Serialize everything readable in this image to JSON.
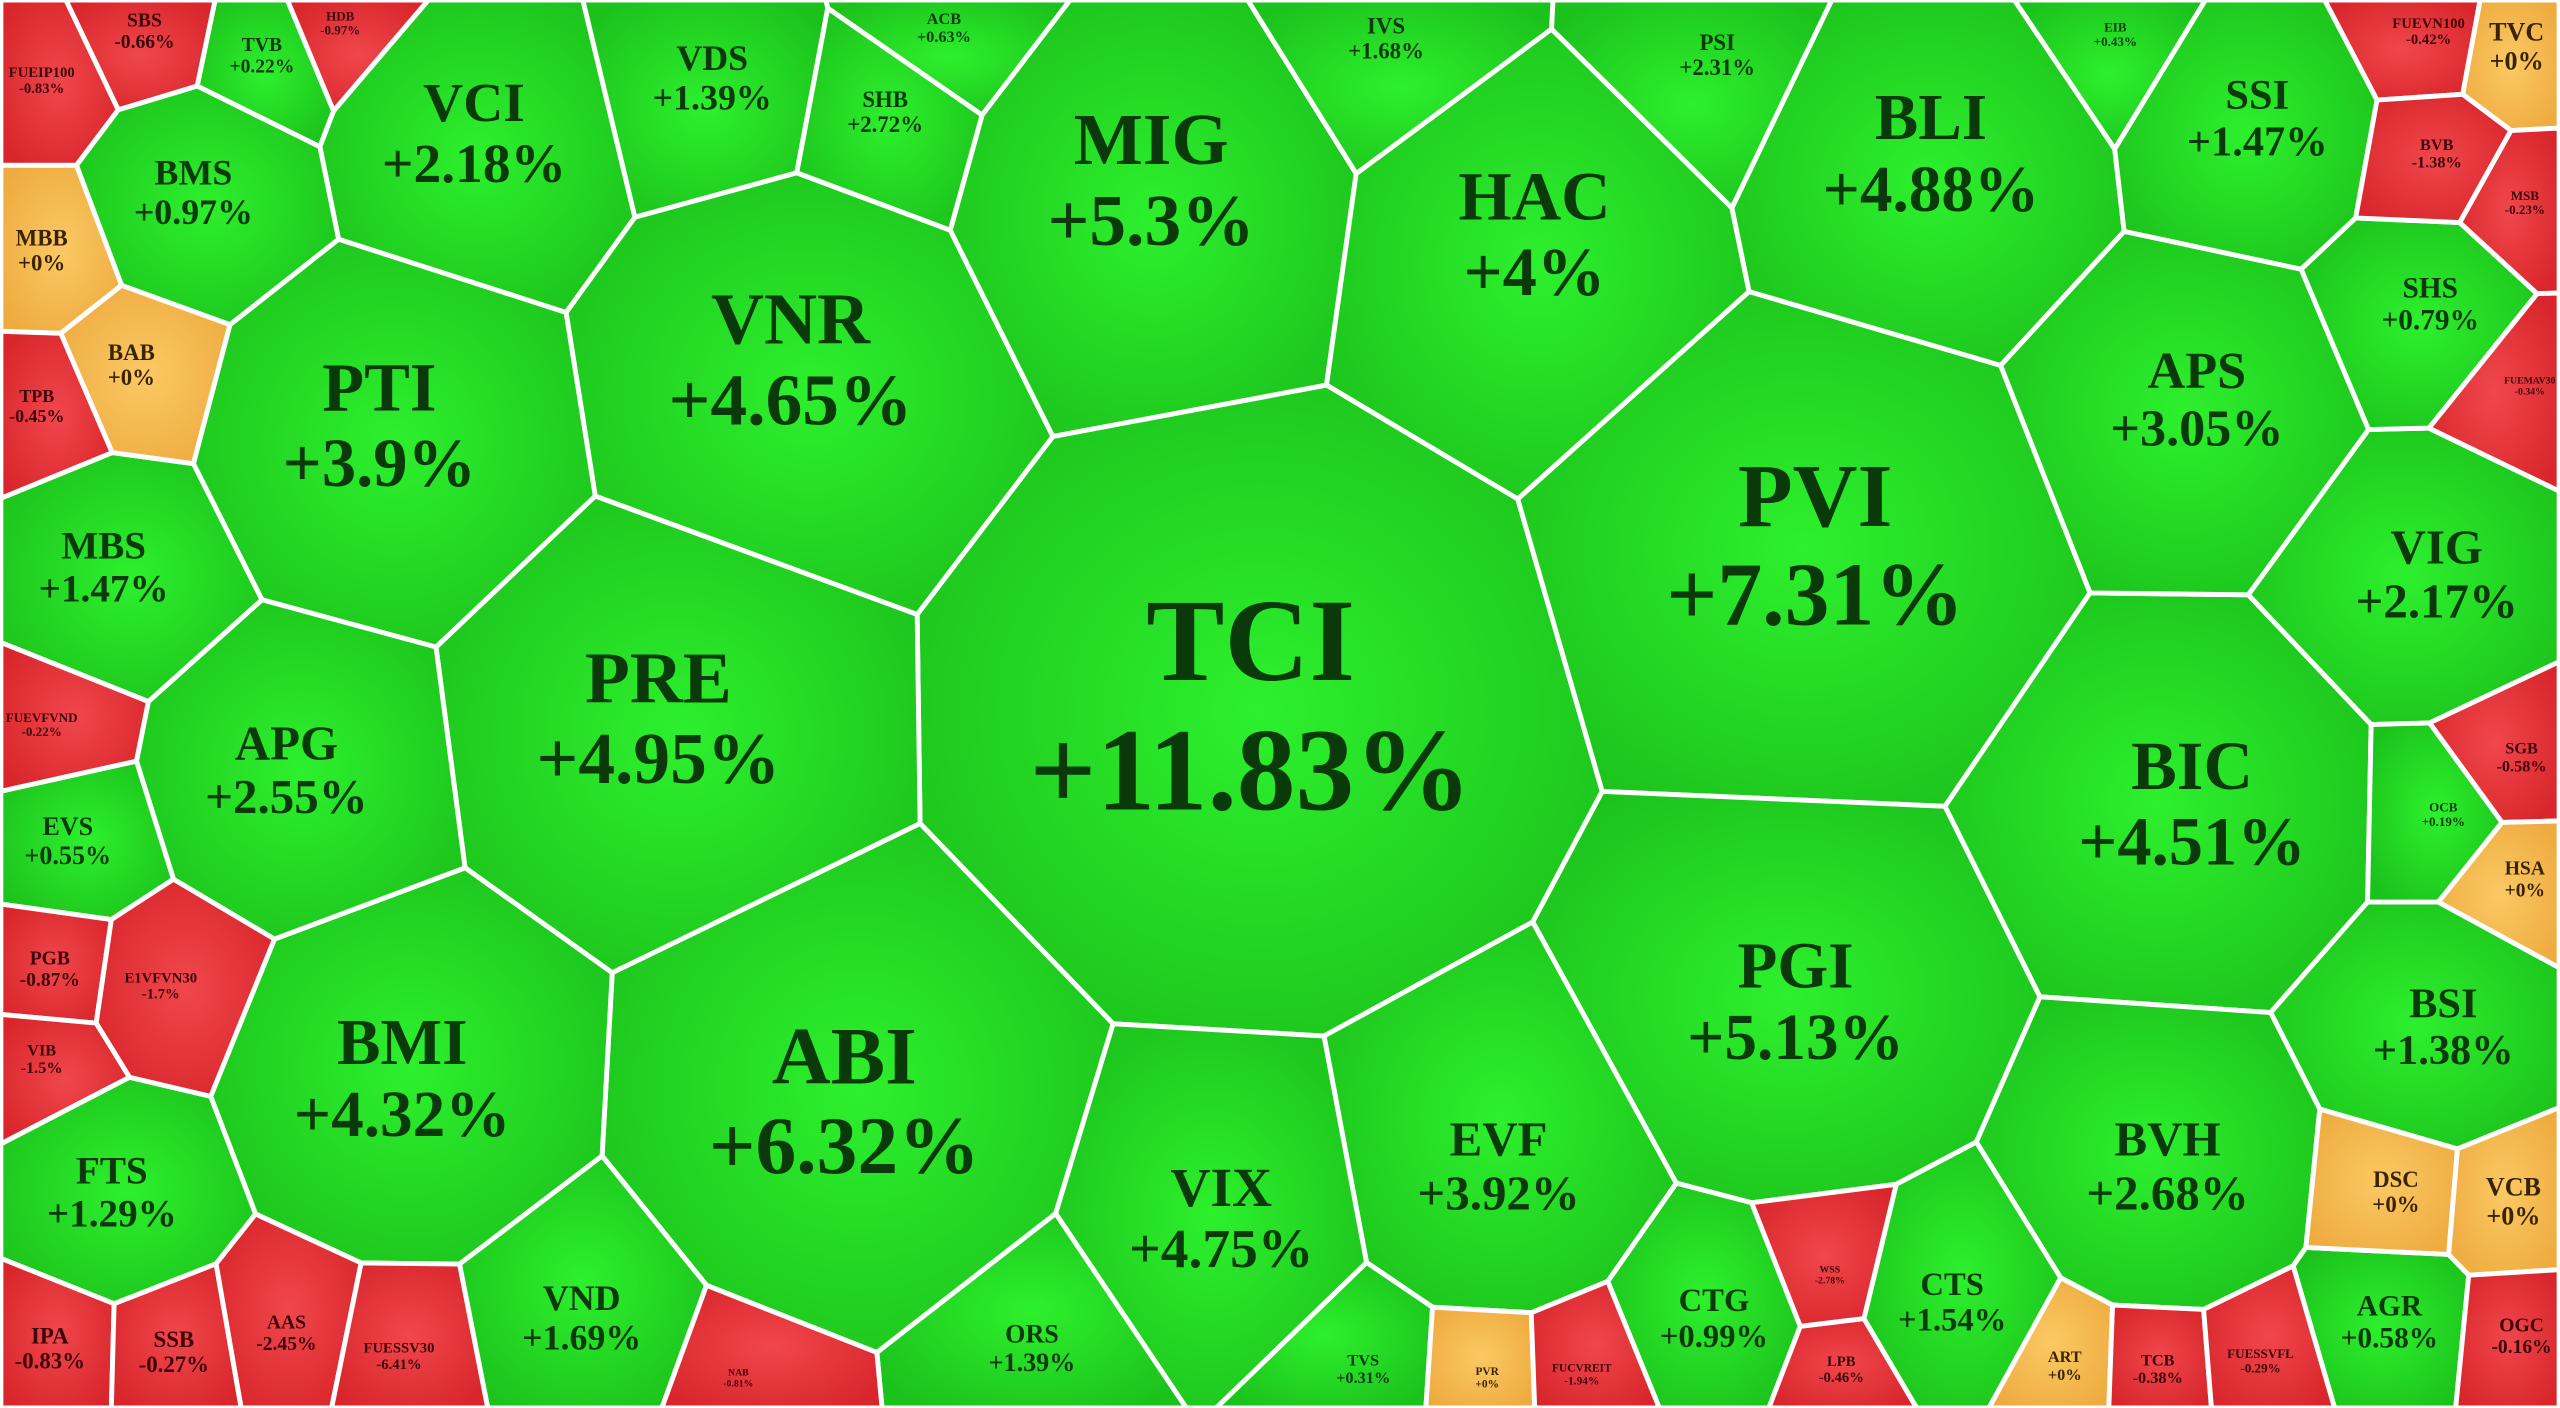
{
  "cells": [
    {
      "ticker": "TCI",
      "change": "+11.83%"
    },
    {
      "ticker": "PVI",
      "change": "+7.31%"
    },
    {
      "ticker": "ABI",
      "change": "+6.32%"
    },
    {
      "ticker": "PRE",
      "change": "+4.95%"
    },
    {
      "ticker": "VNR",
      "change": "+4.65%"
    },
    {
      "ticker": "MIG",
      "change": "+5.3%"
    },
    {
      "ticker": "PTI",
      "change": "+3.9%"
    },
    {
      "ticker": "BMI",
      "change": "+4.32%"
    },
    {
      "ticker": "PGI",
      "change": "+5.13%"
    },
    {
      "ticker": "BIC",
      "change": "+4.51%"
    },
    {
      "ticker": "HAC",
      "change": "+4%"
    },
    {
      "ticker": "BLI",
      "change": "+4.88%"
    },
    {
      "ticker": "VIX",
      "change": "+4.75%"
    },
    {
      "ticker": "EVF",
      "change": "+3.92%"
    },
    {
      "ticker": "APS",
      "change": "+3.05%"
    },
    {
      "ticker": "VIG",
      "change": "+2.17%"
    },
    {
      "ticker": "BSI",
      "change": "+1.38%"
    },
    {
      "ticker": "BVH",
      "change": "+2.68%"
    },
    {
      "ticker": "VCI",
      "change": "+2.18%"
    },
    {
      "ticker": "APG",
      "change": "+2.55%"
    },
    {
      "ticker": "SSI",
      "change": "+1.47%"
    },
    {
      "ticker": "MBS",
      "change": "+1.47%"
    },
    {
      "ticker": "BMS",
      "change": "+0.97%"
    },
    {
      "ticker": "VDS",
      "change": "+1.39%"
    },
    {
      "ticker": "FTS",
      "change": "+1.29%"
    },
    {
      "ticker": "VND",
      "change": "+1.69%"
    },
    {
      "ticker": "CTS",
      "change": "+1.54%"
    },
    {
      "ticker": "CTG",
      "change": "+0.99%"
    },
    {
      "ticker": "ORS",
      "change": "+1.39%"
    },
    {
      "ticker": "SHS",
      "change": "+0.79%"
    },
    {
      "ticker": "AGR",
      "change": "+0.58%"
    },
    {
      "ticker": "EVS",
      "change": "+0.55%"
    },
    {
      "ticker": "SHB",
      "change": "+2.72%"
    },
    {
      "ticker": "PSI",
      "change": "+2.31%"
    },
    {
      "ticker": "IVS",
      "change": "+1.68%"
    },
    {
      "ticker": "TVB",
      "change": "+0.22%"
    },
    {
      "ticker": "SBS",
      "change": "-0.66%"
    },
    {
      "ticker": "FUEIP100",
      "change": "-0.83%"
    },
    {
      "ticker": "MBB",
      "change": "+0%"
    },
    {
      "ticker": "BAB",
      "change": "+0%"
    },
    {
      "ticker": "TPB",
      "change": "-0.45%"
    },
    {
      "ticker": "FUEVFVND",
      "change": "-0.22%"
    },
    {
      "ticker": "PGB",
      "change": "-0.87%"
    },
    {
      "ticker": "E1VFVN30",
      "change": "-1.7%"
    },
    {
      "ticker": "VIB",
      "change": "-1.5%"
    },
    {
      "ticker": "IPA",
      "change": "-0.83%"
    },
    {
      "ticker": "SSB",
      "change": "-0.27%"
    },
    {
      "ticker": "AAS",
      "change": "-2.45%"
    },
    {
      "ticker": "FUESSV30",
      "change": "-6.41%"
    },
    {
      "ticker": "ACB",
      "change": "+0.63%"
    },
    {
      "ticker": "HDB",
      "change": "-0.97%"
    },
    {
      "ticker": "EIB",
      "change": "+0.43%"
    },
    {
      "ticker": "FUEVN100",
      "change": "-0.42%"
    },
    {
      "ticker": "TVC",
      "change": "+0%"
    },
    {
      "ticker": "BVB",
      "change": "-1.38%"
    },
    {
      "ticker": "MSB",
      "change": "-0.23%"
    },
    {
      "ticker": "FUEMAV30",
      "change": "-0.34%"
    },
    {
      "ticker": "SGB",
      "change": "-0.58%"
    },
    {
      "ticker": "OCB",
      "change": "+0.19%"
    },
    {
      "ticker": "HSA",
      "change": "+0%"
    },
    {
      "ticker": "DSC",
      "change": "+0%"
    },
    {
      "ticker": "VCB",
      "change": "+0%"
    },
    {
      "ticker": "OGC",
      "change": "-0.16%"
    },
    {
      "ticker": "ART",
      "change": "+0%"
    },
    {
      "ticker": "TCB",
      "change": "-0.38%"
    },
    {
      "ticker": "FUESSVFL",
      "change": "-0.29%"
    },
    {
      "ticker": "LPB",
      "change": "-0.46%"
    },
    {
      "ticker": "WSS",
      "change": "-2.78%"
    },
    {
      "ticker": "TVS",
      "change": "+0.31%"
    },
    {
      "ticker": "PVR",
      "change": "+0%"
    },
    {
      "ticker": "FUCVREIT",
      "change": "-1.94%"
    },
    {
      "ticker": "NAB",
      "change": "-0.81%"
    }
  ]
}
